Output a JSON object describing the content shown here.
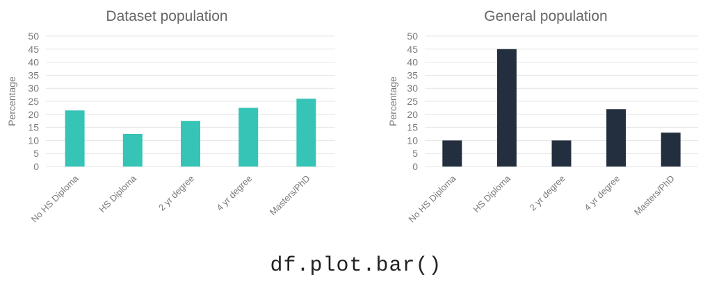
{
  "chart_data": [
    {
      "type": "bar",
      "title": "Dataset population",
      "xlabel": "",
      "ylabel": "Percentage",
      "ylim": [
        0,
        50
      ],
      "yticks": [
        0,
        5,
        10,
        15,
        20,
        25,
        30,
        35,
        40,
        45,
        50
      ],
      "grid": true,
      "color": "#35c4b5",
      "categories": [
        "No HS Diploma",
        "HS Diploma",
        "2 yr degree",
        "4 yr degree",
        "Masters/PhD"
      ],
      "values": [
        21.5,
        12.5,
        17.5,
        22.5,
        26
      ]
    },
    {
      "type": "bar",
      "title": "General population",
      "xlabel": "",
      "ylabel": "Percentage",
      "ylim": [
        0,
        50
      ],
      "yticks": [
        0,
        5,
        10,
        15,
        20,
        25,
        30,
        35,
        40,
        45,
        50
      ],
      "grid": true,
      "color": "#232f3e",
      "categories": [
        "No HS Diploma",
        "HS Diploma",
        "2 yr degree",
        "4 yr degree",
        "Masters/PhD"
      ],
      "values": [
        10,
        45,
        10,
        22,
        13
      ]
    }
  ],
  "caption": {
    "code": "df.plot.bar()"
  }
}
